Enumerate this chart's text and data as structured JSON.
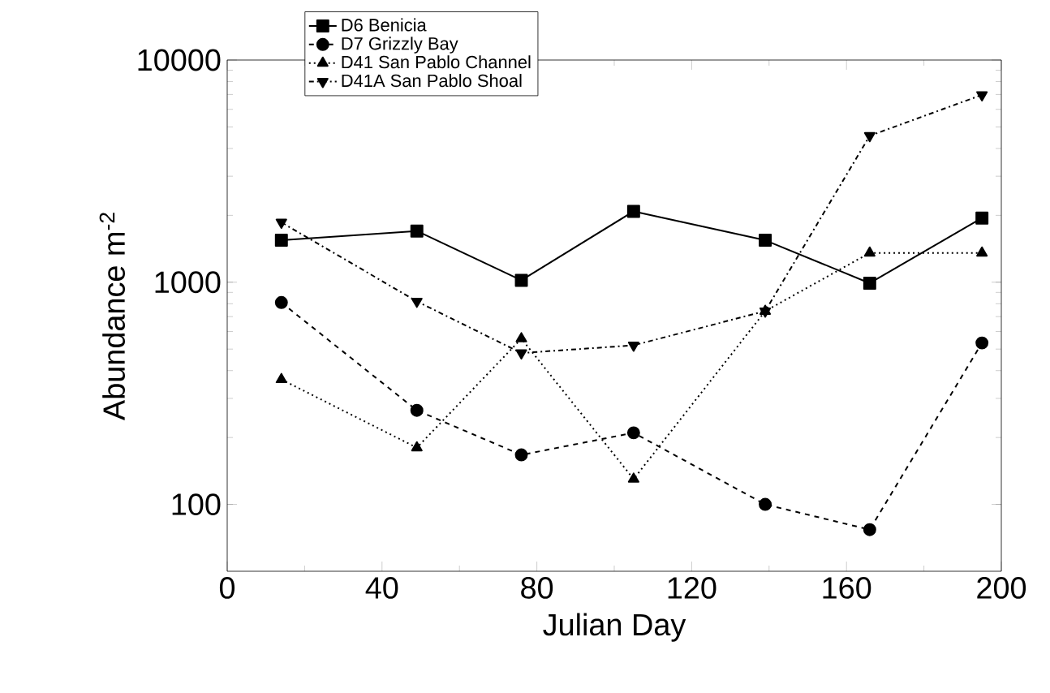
{
  "chart_data": {
    "type": "line",
    "xlabel": "Julian Day",
    "ylabel": "Abundance m$^{-2}$",
    "x": [
      14,
      49,
      76,
      105,
      139,
      166,
      195
    ],
    "series": [
      {
        "name": "D6 Benicia",
        "color": "#000000",
        "marker": "square",
        "line_style": "solid",
        "values": [
          1545,
          1700,
          1020,
          2085,
          1545,
          990,
          1945
        ]
      },
      {
        "name": "D7 Grizzly Bay",
        "color": "#000000",
        "marker": "circle",
        "line_style": "dashed",
        "values": [
          810,
          265,
          167,
          210,
          100,
          77,
          533
        ]
      },
      {
        "name": "D41 San Pablo Channel",
        "color": "#000000",
        "marker": "triangle",
        "line_style": "dotted",
        "values": [
          365,
          180,
          557,
          130,
          741,
          1355,
          1355
        ]
      },
      {
        "name": "D41A San Pablo Shoal",
        "color": "#000000",
        "marker": "triangle-down",
        "line_style": "dashdot",
        "values": [
          1860,
          820,
          480,
          520,
          741,
          4560,
          6970
        ]
      }
    ],
    "log": "y",
    "grid": false,
    "legend": "top",
    "xlim": [
      0,
      200
    ],
    "xticks": [
      0,
      40,
      80,
      120,
      160,
      200
    ],
    "ylim": [
      50,
      10000
    ],
    "yticks": [
      100,
      1000,
      10000
    ]
  }
}
